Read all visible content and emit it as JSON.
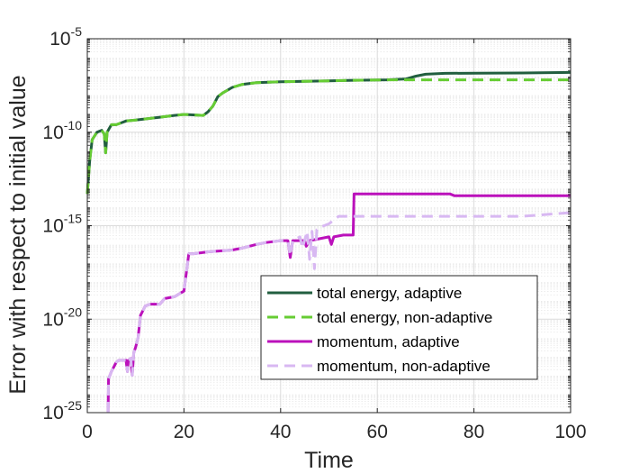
{
  "chart_data": {
    "type": "line",
    "title": "",
    "xlabel": "Time",
    "ylabel": "Error with respect to initial value",
    "xlim": [
      0,
      100
    ],
    "ylim_log10": [
      -25,
      -5
    ],
    "y_scale": "log",
    "grid": "on (major and minor)",
    "legend_location": "bottom-right",
    "x_ticks": [
      "0",
      "20",
      "40",
      "60",
      "80",
      "100"
    ],
    "y_ticks": [
      {
        "base": "10",
        "exp": "-25"
      },
      {
        "base": "10",
        "exp": "-20"
      },
      {
        "base": "10",
        "exp": "-15"
      },
      {
        "base": "10",
        "exp": "-10"
      },
      {
        "base": "10",
        "exp": "-5"
      }
    ],
    "series": [
      {
        "name": "total energy, adaptive",
        "color": "#215e3f",
        "style": "solid",
        "points": [
          [
            0,
            -13.3
          ],
          [
            0.5,
            -11.5
          ],
          [
            1,
            -10.4
          ],
          [
            2,
            -10.0
          ],
          [
            3,
            -9.9
          ],
          [
            3.5,
            -10.1
          ],
          [
            3.8,
            -11.1
          ],
          [
            4.1,
            -10.0
          ],
          [
            5,
            -9.6
          ],
          [
            6,
            -9.6
          ],
          [
            7,
            -9.5
          ],
          [
            8,
            -9.4
          ],
          [
            10,
            -9.35
          ],
          [
            15,
            -9.2
          ],
          [
            18,
            -9.1
          ],
          [
            20,
            -9.05
          ],
          [
            24,
            -9.1
          ],
          [
            25,
            -8.9
          ],
          [
            26,
            -8.6
          ],
          [
            27,
            -8.1
          ],
          [
            28,
            -7.9
          ],
          [
            30,
            -7.6
          ],
          [
            32,
            -7.45
          ],
          [
            35,
            -7.35
          ],
          [
            40,
            -7.3
          ],
          [
            45,
            -7.28
          ],
          [
            50,
            -7.25
          ],
          [
            55,
            -7.22
          ],
          [
            62,
            -7.2
          ],
          [
            66,
            -7.15
          ],
          [
            68,
            -7.0
          ],
          [
            70,
            -6.9
          ],
          [
            74,
            -6.85
          ],
          [
            80,
            -6.84
          ],
          [
            90,
            -6.83
          ],
          [
            100,
            -6.8
          ]
        ]
      },
      {
        "name": "total energy, non-adaptive",
        "color": "#66cc33",
        "style": "dashed",
        "points": [
          [
            0,
            -13.3
          ],
          [
            0.5,
            -11.5
          ],
          [
            1,
            -10.4
          ],
          [
            2,
            -10.0
          ],
          [
            3,
            -9.9
          ],
          [
            3.5,
            -10.1
          ],
          [
            3.8,
            -11.1
          ],
          [
            4.1,
            -10.0
          ],
          [
            5,
            -9.6
          ],
          [
            6,
            -9.6
          ],
          [
            7,
            -9.5
          ],
          [
            8,
            -9.4
          ],
          [
            10,
            -9.35
          ],
          [
            15,
            -9.2
          ],
          [
            18,
            -9.1
          ],
          [
            20,
            -9.05
          ],
          [
            24,
            -9.1
          ],
          [
            25,
            -8.9
          ],
          [
            26,
            -8.6
          ],
          [
            27,
            -8.1
          ],
          [
            28,
            -7.9
          ],
          [
            30,
            -7.6
          ],
          [
            32,
            -7.45
          ],
          [
            35,
            -7.35
          ],
          [
            40,
            -7.3
          ],
          [
            45,
            -7.28
          ],
          [
            50,
            -7.25
          ],
          [
            55,
            -7.22
          ],
          [
            62,
            -7.2
          ],
          [
            70,
            -7.2
          ],
          [
            80,
            -7.2
          ],
          [
            90,
            -7.2
          ],
          [
            100,
            -7.2
          ]
        ]
      },
      {
        "name": "momentum, adaptive",
        "color": "#bb11bb",
        "style": "solid",
        "points": [
          [
            4.3,
            -25
          ],
          [
            4.4,
            -23.2
          ],
          [
            5,
            -22.8
          ],
          [
            6,
            -22.3
          ],
          [
            6.5,
            -22.2
          ],
          [
            8,
            -22.2
          ],
          [
            8.3,
            -22.8
          ],
          [
            8.5,
            -22.2
          ],
          [
            9,
            -22.1
          ],
          [
            9.3,
            -23.0
          ],
          [
            9.6,
            -21.8
          ],
          [
            10,
            -21.5
          ],
          [
            10.5,
            -21.0
          ],
          [
            11,
            -19.8
          ],
          [
            12,
            -19.3
          ],
          [
            13,
            -19.2
          ],
          [
            15,
            -19.2
          ],
          [
            16,
            -18.9
          ],
          [
            18,
            -18.8
          ],
          [
            20,
            -18.5
          ],
          [
            21,
            -16.5
          ],
          [
            22,
            -16.5
          ],
          [
            25,
            -16.4
          ],
          [
            30,
            -16.3
          ],
          [
            32,
            -16.2
          ],
          [
            35,
            -16.0
          ],
          [
            37,
            -15.9
          ],
          [
            40,
            -15.8
          ],
          [
            41.5,
            -15.8
          ],
          [
            42,
            -16.7
          ],
          [
            42.5,
            -15.8
          ],
          [
            45,
            -15.8
          ],
          [
            45.3,
            -16.1
          ],
          [
            46,
            -15.8
          ],
          [
            48,
            -15.7
          ],
          [
            50,
            -15.6
          ],
          [
            50.5,
            -16.0
          ],
          [
            51,
            -15.6
          ],
          [
            53,
            -15.5
          ],
          [
            55,
            -15.5
          ],
          [
            55.2,
            -13.3
          ],
          [
            60,
            -13.3
          ],
          [
            65,
            -13.3
          ],
          [
            70,
            -13.3
          ],
          [
            75,
            -13.3
          ],
          [
            76,
            -13.4
          ],
          [
            80,
            -13.4
          ],
          [
            90,
            -13.4
          ],
          [
            100,
            -13.4
          ]
        ]
      },
      {
        "name": "momentum, non-adaptive",
        "color": "#d8b8f2",
        "style": "dashed",
        "points": [
          [
            4.3,
            -25
          ],
          [
            4.4,
            -23.2
          ],
          [
            5,
            -22.8
          ],
          [
            6,
            -22.3
          ],
          [
            6.5,
            -22.2
          ],
          [
            8,
            -22.2
          ],
          [
            8.3,
            -22.8
          ],
          [
            8.5,
            -22.2
          ],
          [
            9,
            -22.1
          ],
          [
            9.3,
            -23.0
          ],
          [
            9.6,
            -21.8
          ],
          [
            10,
            -21.5
          ],
          [
            10.5,
            -21.0
          ],
          [
            11,
            -19.8
          ],
          [
            12,
            -19.3
          ],
          [
            13,
            -19.2
          ],
          [
            15,
            -19.2
          ],
          [
            16,
            -18.9
          ],
          [
            18,
            -18.8
          ],
          [
            20,
            -18.5
          ],
          [
            21,
            -16.5
          ],
          [
            22,
            -16.5
          ],
          [
            25,
            -16.4
          ],
          [
            30,
            -16.3
          ],
          [
            32,
            -16.2
          ],
          [
            35,
            -16.0
          ],
          [
            37,
            -15.9
          ],
          [
            40,
            -15.8
          ],
          [
            41.5,
            -15.8
          ],
          [
            42,
            -16.6
          ],
          [
            42.5,
            -15.8
          ],
          [
            44,
            -15.6
          ],
          [
            44.5,
            -16.2
          ],
          [
            45.5,
            -15.3
          ],
          [
            46,
            -16.8
          ],
          [
            46.5,
            -15.3
          ],
          [
            47,
            -17.3
          ],
          [
            47.5,
            -15.2
          ],
          [
            48,
            -15.1
          ],
          [
            50,
            -14.9
          ],
          [
            52,
            -14.5
          ],
          [
            55,
            -14.5
          ],
          [
            60,
            -14.5
          ],
          [
            70,
            -14.5
          ],
          [
            80,
            -14.5
          ],
          [
            90,
            -14.5
          ],
          [
            100,
            -14.3
          ]
        ]
      }
    ]
  }
}
